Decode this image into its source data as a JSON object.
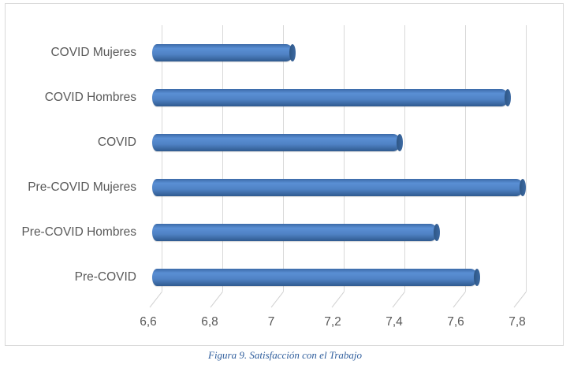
{
  "chart_data": {
    "type": "bar",
    "orientation": "horizontal",
    "style": "3d-cylinder",
    "title": "",
    "caption": "Figura 9. Satisfacción con el Trabajo",
    "xlabel": "",
    "ylabel": "",
    "categories": [
      "COVID Mujeres",
      "COVID Hombres",
      "COVID",
      "Pre-COVID Mujeres",
      "Pre-COVID Hombres",
      "Pre-COVID"
    ],
    "values": [
      7.05,
      7.75,
      7.4,
      7.8,
      7.52,
      7.65
    ],
    "xlim": [
      6.6,
      7.8
    ],
    "x_ticks": [
      "6,6",
      "6,8",
      "7",
      "7,2",
      "7,4",
      "7,6",
      "7,8"
    ],
    "grid": "vertical",
    "legend": null,
    "bar_color": "#4f81bd"
  },
  "caption": "Figura 9. Satisfacción con el Trabajo"
}
